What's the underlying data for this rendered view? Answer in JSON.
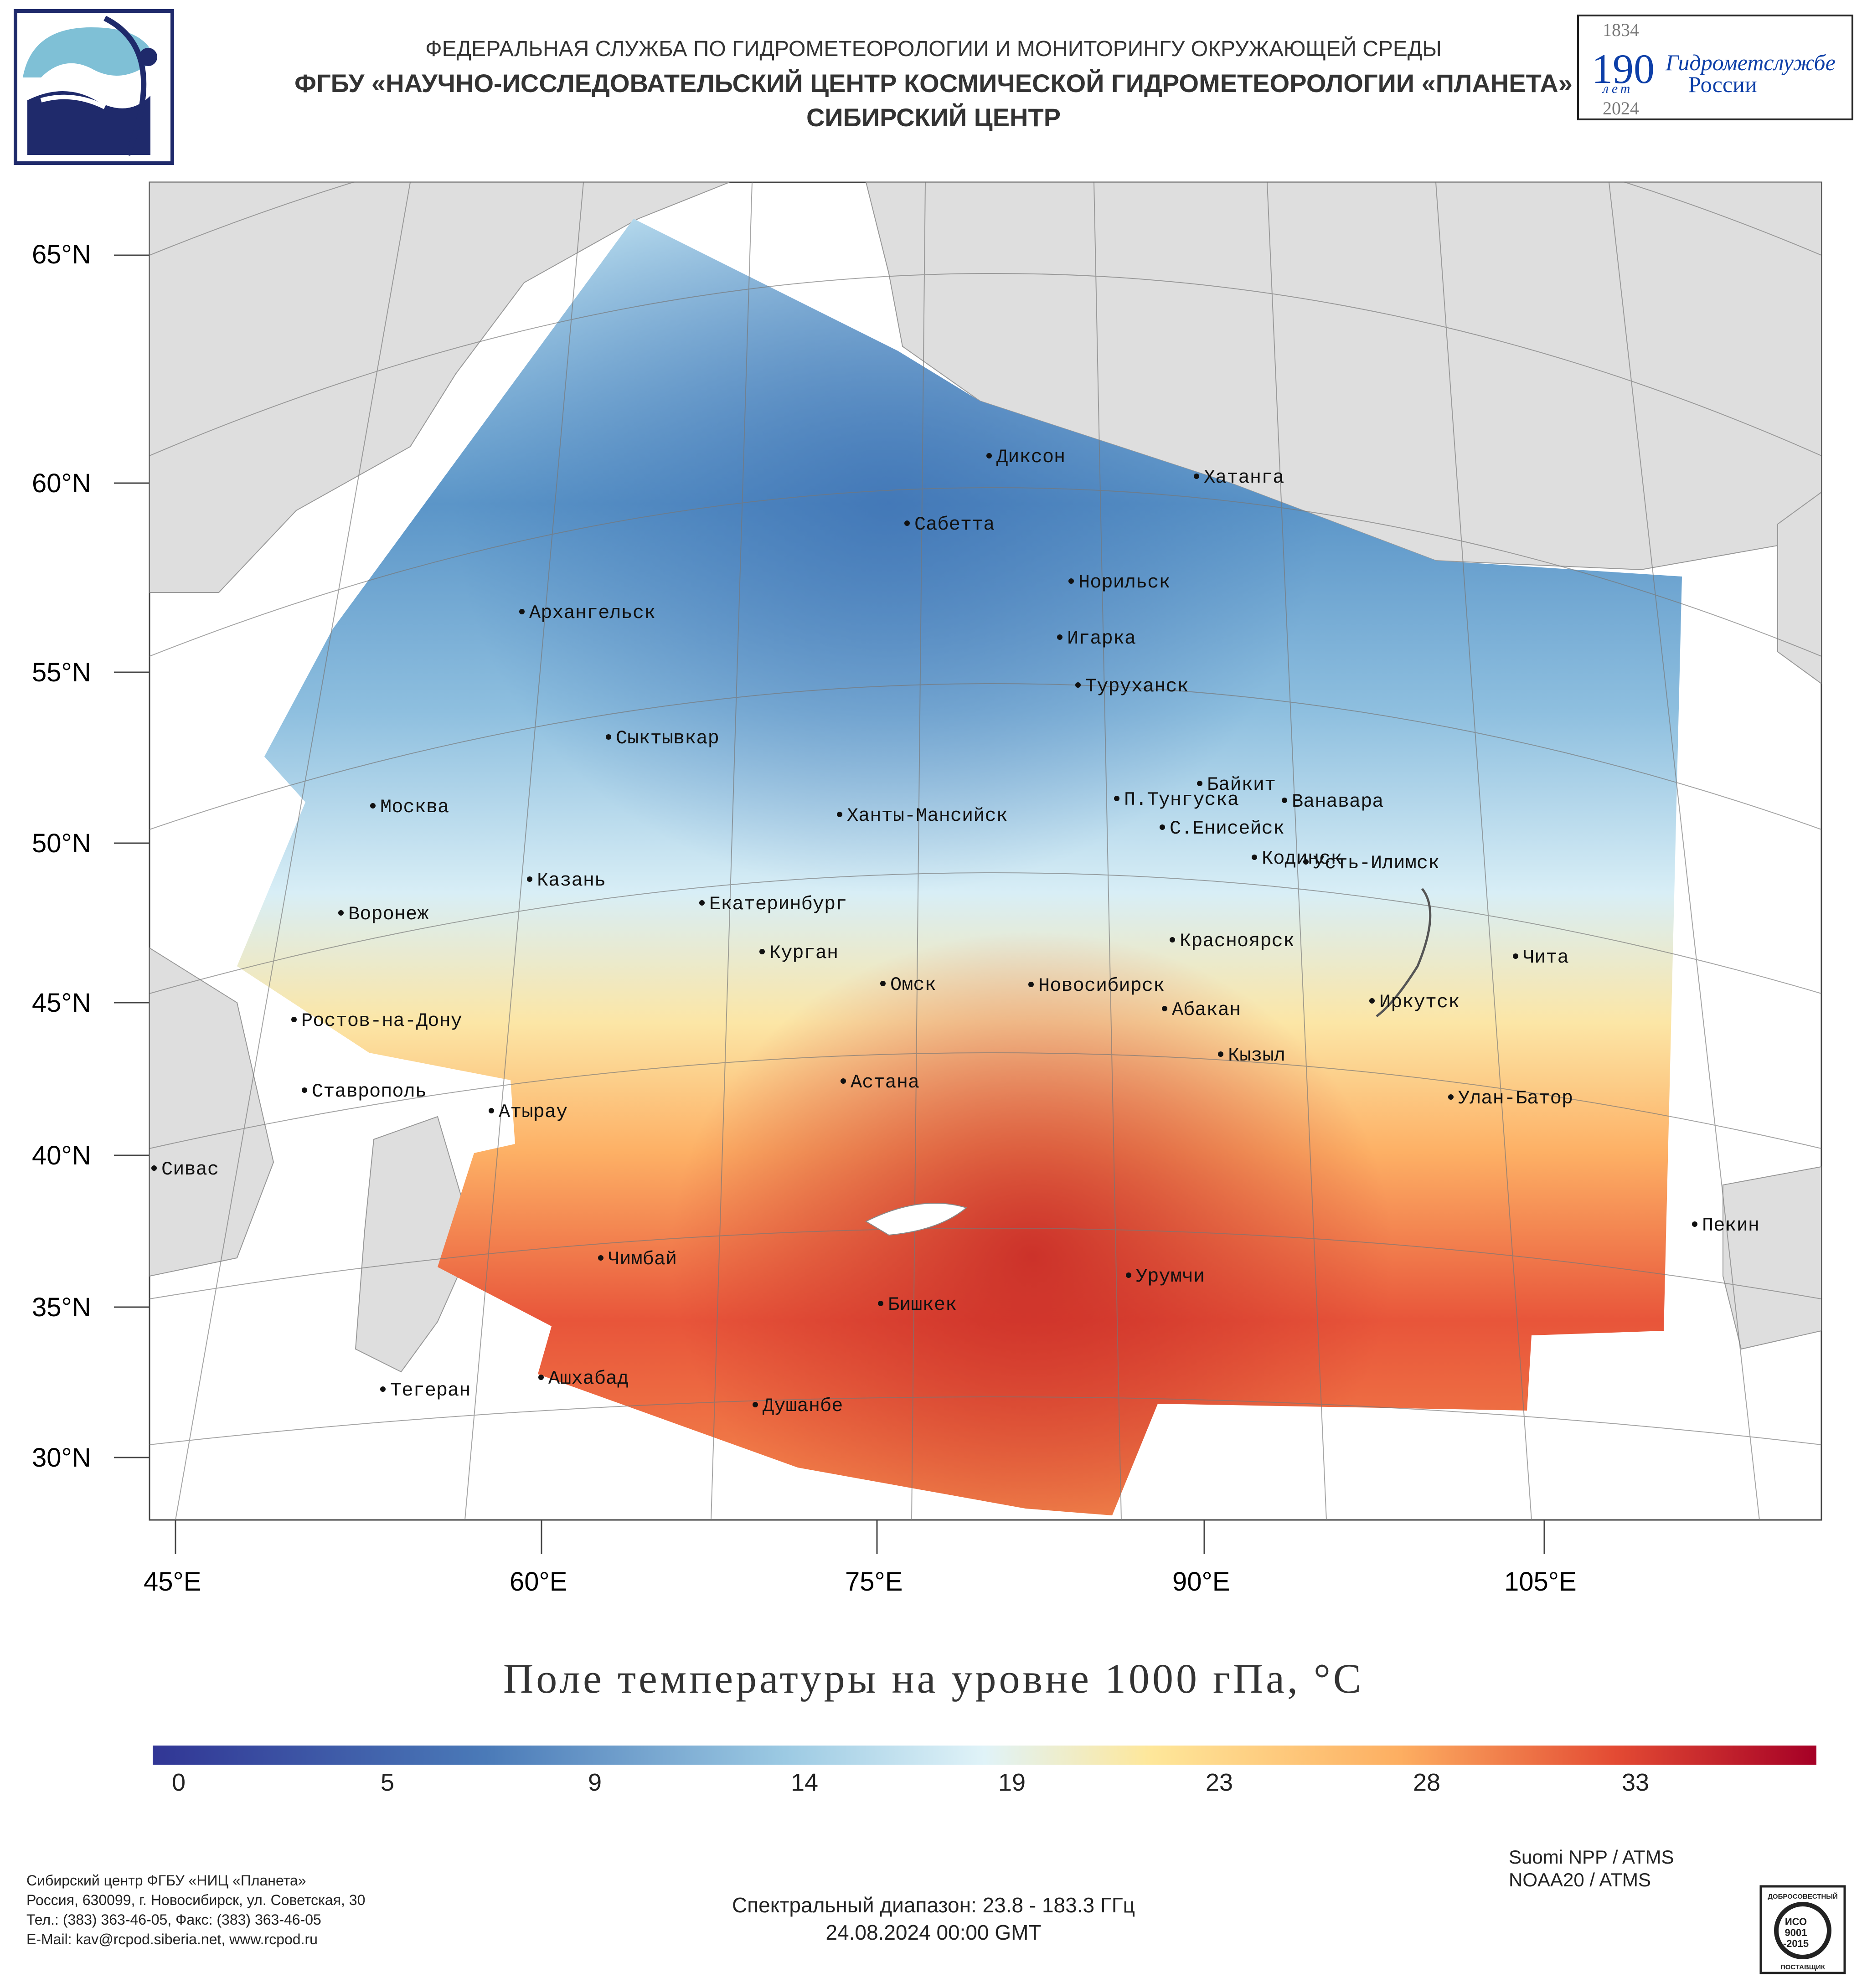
{
  "header": {
    "agency": "ФЕДЕРАЛЬНАЯ СЛУЖБА ПО ГИДРОМЕТЕОРОЛОГИИ И МОНИТОРИНГУ ОКРУЖАЮЩЕЙ СРЕДЫ",
    "center": "ФГБУ «НАУЧНО-ИССЛЕДОВАТЕЛЬСКИЙ ЦЕНТР КОСМИЧЕСКОЙ ГИДРОМЕТЕОРОЛОГИИ «ПЛАНЕТА»",
    "branch": "СИБИРСКИЙ ЦЕНТР"
  },
  "anniversary": {
    "year_start": "1834",
    "number": "190",
    "years_word": "лет",
    "year_end": "2024",
    "name_line1": "Гидрометслужбе",
    "name_line2": "России"
  },
  "map": {
    "lat_labels": [
      "65°N",
      "60°N",
      "55°N",
      "50°N",
      "45°N",
      "40°N",
      "35°N",
      "30°N"
    ],
    "lon_labels": [
      "45°E",
      "60°E",
      "75°E",
      "90°E",
      "105°E"
    ],
    "cities": [
      "Диксон",
      "Хатанга",
      "Сабетта",
      "Норильск",
      "Архангельск",
      "Игарка",
      "Туруханск",
      "Сыктывкар",
      "Байкит",
      "Москва",
      "П.Тунгуска",
      "Ванавара",
      "Ханты-Мансийск",
      "С.Енисейск",
      "Кодинск",
      "Усть-Илимск",
      "Казань",
      "Воронеж",
      "Екатеринбург",
      "Красноярск",
      "Курган",
      "Чита",
      "Омск",
      "Новосибирск",
      "Ростов-на-Дону",
      "Иркутск",
      "Абакан",
      "Кызыл",
      "Астана",
      "Ставрополь",
      "Улан-Батор",
      "Атырау",
      "Сивас",
      "Пекин",
      "Чимбай",
      "Урумчи",
      "Бишкек",
      "Ашхабад",
      "Тегеран",
      "Душанбе"
    ],
    "color_scale": {
      "cold": "#313695",
      "mid": "#e0f3f8",
      "warm": "#fdae61",
      "hot": "#a50026",
      "land": "#dedede",
      "sea": "#ffffff"
    }
  },
  "colorbar": {
    "title": "Поле температуры на уровне 1000 гПа, °C",
    "ticks": [
      "0",
      "5",
      "9",
      "14",
      "19",
      "23",
      "28",
      "33"
    ]
  },
  "sources": {
    "sat1": "Suomi NPP / ATMS",
    "sat2": "NOAA20 / ATMS"
  },
  "footer": {
    "spectral": "Спектральный диапазон: 23.8 - 183.3 ГГц",
    "datetime": "24.08.2024 00:00 GMT"
  },
  "contact": {
    "line1": "Сибирский центр ФГБУ «НИЦ «Планета»",
    "line2": "Россия, 630099, г. Новосибирск, ул. Советская, 30",
    "line3": "Тел.: (383) 363-46-05, Факс: (383) 363-46-05",
    "line4": "E-Mail: kav@rcpod.siberia.net, www.rcpod.ru"
  },
  "iso_badge": {
    "top": "ДОБРОСОВЕСТНЫЙ",
    "mid1": "ИСО",
    "mid2": "9001",
    "mid3": "-2015",
    "bottom": "ПОСТАВЩИК"
  }
}
